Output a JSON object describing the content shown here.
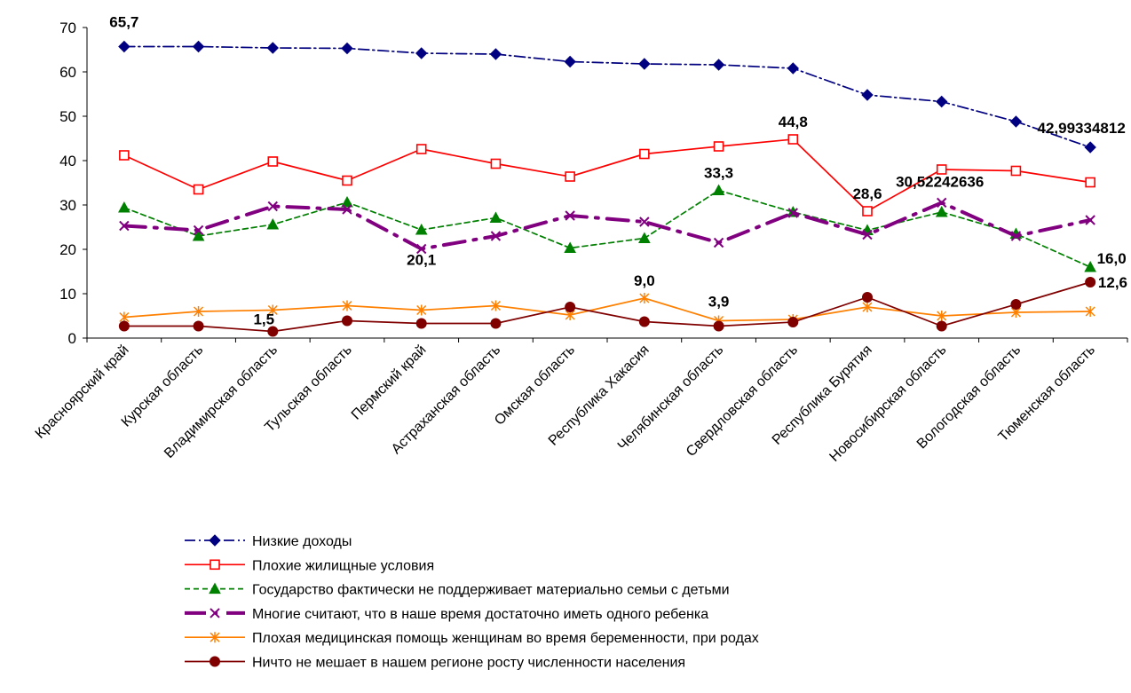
{
  "chart_data": {
    "type": "line",
    "title": "",
    "xlabel": "",
    "ylabel": "",
    "ylim": [
      0,
      70
    ],
    "yticks": [
      0,
      10,
      20,
      30,
      40,
      50,
      60,
      70
    ],
    "grid": false,
    "legend_position": "bottom",
    "categories": [
      "Красноярский край",
      "Курская область",
      "Владимирская область",
      "Тульская область",
      "Пермский край",
      "Астраханская область",
      "Омская область",
      "Республика Хакасия",
      "Челябинская область",
      "Свердловская область",
      "Республика Бурятия",
      "Новосибирская область",
      "Вологодская область",
      "Тюменская область"
    ],
    "series": [
      {
        "name": "Низкие доходы",
        "color": "#000080",
        "dash": "dash-dot",
        "marker": "diamond",
        "values": [
          65.7,
          65.7,
          65.4,
          65.3,
          64.2,
          64.0,
          62.3,
          61.8,
          61.6,
          60.8,
          54.8,
          53.3,
          48.8,
          42.99334812
        ]
      },
      {
        "name": "Плохие жилищные  условия",
        "color": "#ff0000",
        "dash": "solid",
        "marker": "square",
        "values": [
          41.2,
          33.5,
          39.8,
          35.5,
          42.6,
          39.3,
          36.4,
          41.5,
          43.2,
          44.8,
          28.6,
          38.0,
          37.7,
          35.1
        ]
      },
      {
        "name": "Государство фактически не поддерживает  материально  семьи с детьми",
        "color": "#008000",
        "dash": "dashed",
        "marker": "triangle",
        "values": [
          29.4,
          23.0,
          25.6,
          30.6,
          24.4,
          27.1,
          20.3,
          22.5,
          33.3,
          28.4,
          24.3,
          28.4,
          23.5,
          16.0
        ]
      },
      {
        "name": "Многие  считают, что в наше время достаточно иметь одного ребенка",
        "color": "#800080",
        "dash": "long-dash-dot",
        "marker": "x",
        "values": [
          25.3,
          24.3,
          29.7,
          29.0,
          20.1,
          23.0,
          27.6,
          26.2,
          21.5,
          28.2,
          23.3,
          30.52242636,
          23.0,
          26.6
        ]
      },
      {
        "name": "Плохая  медицинская  помощь  женщинам  во время беременности,  при родах",
        "color": "#ff8000",
        "dash": "solid",
        "marker": "asterisk",
        "values": [
          4.7,
          6.0,
          6.3,
          7.3,
          6.3,
          7.3,
          5.2,
          9.0,
          3.9,
          4.2,
          7.0,
          5.0,
          5.8,
          6.0
        ]
      },
      {
        "name": "Ничто не мешает  в нашем  регионе  росту численности  населения",
        "color": "#800000",
        "dash": "solid",
        "marker": "circle",
        "values": [
          2.7,
          2.7,
          1.5,
          3.9,
          3.3,
          3.3,
          7.0,
          3.7,
          2.7,
          3.6,
          9.2,
          2.7,
          7.6,
          12.6
        ]
      }
    ],
    "annotations": [
      {
        "series": 0,
        "index": 0,
        "text": "65,7"
      },
      {
        "series": 0,
        "index": 13,
        "text": "42,99334812"
      },
      {
        "series": 1,
        "index": 9,
        "text": "44,8"
      },
      {
        "series": 1,
        "index": 10,
        "text": "28,6"
      },
      {
        "series": 2,
        "index": 8,
        "text": "33,3"
      },
      {
        "series": 2,
        "index": 13,
        "text": "16,0"
      },
      {
        "series": 3,
        "index": 4,
        "text": "20,1"
      },
      {
        "series": 3,
        "index": 11,
        "text": "30,52242636"
      },
      {
        "series": 4,
        "index": 7,
        "text": "9,0"
      },
      {
        "series": 4,
        "index": 8,
        "text": "3,9"
      },
      {
        "series": 5,
        "index": 2,
        "text": "1,5"
      },
      {
        "series": 5,
        "index": 13,
        "text": "12,6"
      }
    ]
  }
}
